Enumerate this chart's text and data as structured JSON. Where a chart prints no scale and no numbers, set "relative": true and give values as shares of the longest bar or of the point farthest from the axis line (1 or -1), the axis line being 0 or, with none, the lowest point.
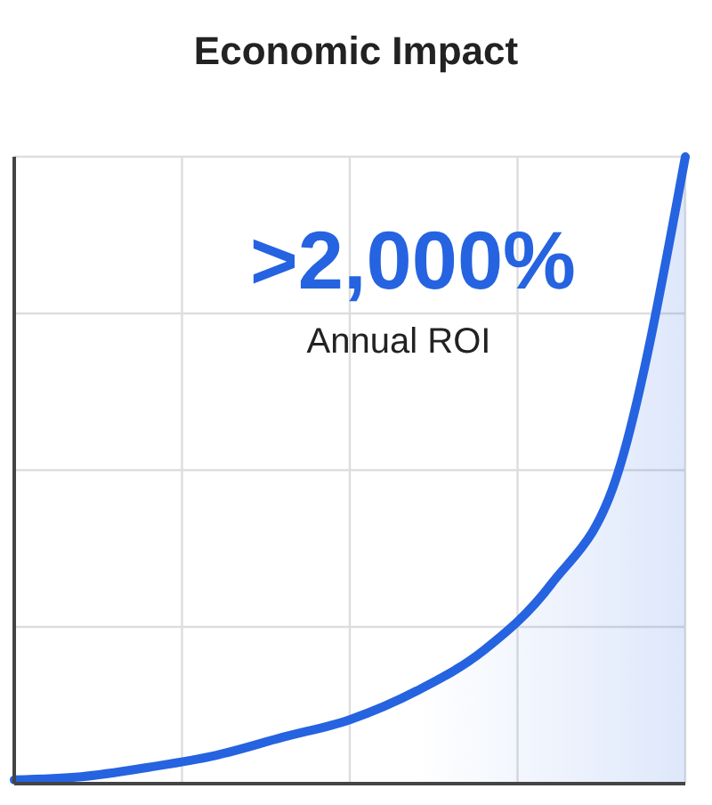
{
  "chart_data": {
    "type": "area",
    "title": "Economic Impact",
    "relative": true,
    "grid": true,
    "categories": [
      null,
      null,
      null,
      null,
      null,
      null,
      null,
      null,
      null,
      null,
      null
    ],
    "series": [
      {
        "color": "#2563e0",
        "values": [
          0.006,
          0.011,
          0.026,
          0.045,
          0.074,
          0.102,
          0.148,
          0.213,
          0.318,
          0.497,
          1
        ]
      }
    ],
    "annotations": [
      ">2,000%",
      "Annual ROI"
    ]
  }
}
